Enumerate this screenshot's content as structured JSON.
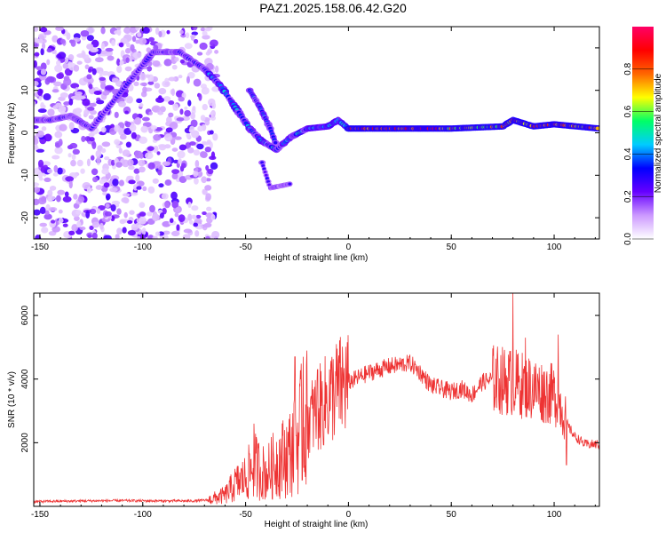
{
  "figure": {
    "title": "PAZ1.2025.158.06.42.G20"
  },
  "chart_data": [
    {
      "type": "heatmap",
      "title": "PAZ1.2025.158.06.42.G20",
      "xlabel": "Height of straight line (km)",
      "ylabel": "Frequency (Hz)",
      "xlim": [
        -153,
        122
      ],
      "ylim": [
        -25,
        25
      ],
      "xticks": [
        "-150",
        "-100",
        "-50",
        "0",
        "50",
        "100"
      ],
      "xtick_values": [
        -150,
        -100,
        -50,
        0,
        50,
        100
      ],
      "yticks": [
        "20",
        "10",
        "0",
        "-10",
        "-20"
      ],
      "ytick_values": [
        20,
        10,
        0,
        -10,
        -20
      ],
      "colorbar": {
        "label": "Normalized spectral amplitude",
        "range": [
          0.0,
          1.0
        ],
        "ticks": [
          "0.0",
          "0.2",
          "0.4",
          "0.6",
          "0.8"
        ],
        "tick_values": [
          0.0,
          0.2,
          0.4,
          0.6,
          0.8
        ],
        "colormap": [
          "#ffffff",
          "#cc99ff",
          "#6600ff",
          "#0000ff",
          "#00ccff",
          "#00ff66",
          "#ffff00",
          "#ff6600",
          "#ff0000",
          "#ff0066"
        ]
      },
      "features": {
        "noise_region_x": [
          -153,
          -68
        ],
        "main_signal": [
          {
            "x": -153,
            "f": 3
          },
          {
            "x": -145,
            "f": 3
          },
          {
            "x": -135,
            "f": 4
          },
          {
            "x": -125,
            "f": 1
          },
          {
            "x": -95,
            "f": 19
          },
          {
            "x": -82,
            "f": 19
          },
          {
            "x": -70,
            "f": 15
          },
          {
            "x": -62,
            "f": 11
          },
          {
            "x": -55,
            "f": 6
          },
          {
            "x": -48,
            "f": 1
          },
          {
            "x": -42,
            "f": -2
          },
          {
            "x": -35,
            "f": -4
          },
          {
            "x": -28,
            "f": -1
          },
          {
            "x": -20,
            "f": 1
          },
          {
            "x": -10,
            "f": 1.5
          },
          {
            "x": -5,
            "f": 3
          },
          {
            "x": 0,
            "f": 1
          },
          {
            "x": 20,
            "f": 1
          },
          {
            "x": 50,
            "f": 1
          },
          {
            "x": 75,
            "f": 1.5
          },
          {
            "x": 80,
            "f": 3
          },
          {
            "x": 90,
            "f": 1.5
          },
          {
            "x": 100,
            "f": 2
          },
          {
            "x": 122,
            "f": 1
          }
        ],
        "secondary_branch": [
          {
            "x": -48,
            "f": 10
          },
          {
            "x": -43,
            "f": 6
          },
          {
            "x": -38,
            "f": 1
          },
          {
            "x": -35,
            "f": -3
          }
        ],
        "tertiary_branch": [
          {
            "x": -42,
            "f": -7
          },
          {
            "x": -38,
            "f": -13
          },
          {
            "x": -28,
            "f": -12
          }
        ]
      }
    },
    {
      "type": "line",
      "xlabel": "Height of straight line (km)",
      "ylabel": "SNR (10 * v/v)",
      "xlim": [
        -153,
        122
      ],
      "ylim": [
        0,
        6700
      ],
      "xticks": [
        "-150",
        "-100",
        "-50",
        "0",
        "50",
        "100"
      ],
      "xtick_values": [
        -150,
        -100,
        -50,
        0,
        50,
        100
      ],
      "yticks": [
        "6000",
        "4000",
        "2000"
      ],
      "ytick_values": [
        6000,
        4000,
        2000
      ],
      "series": [
        {
          "color": "#ee3333",
          "envelope": [
            {
              "x": -153,
              "y": 150
            },
            {
              "x": -130,
              "y": 170
            },
            {
              "x": -110,
              "y": 180
            },
            {
              "x": -90,
              "y": 170
            },
            {
              "x": -75,
              "y": 170
            },
            {
              "x": -68,
              "y": 200
            },
            {
              "x": -60,
              "y": 350
            },
            {
              "x": -55,
              "y": 700
            },
            {
              "x": -50,
              "y": 900
            },
            {
              "x": -46,
              "y": 1300
            },
            {
              "x": -40,
              "y": 1000
            },
            {
              "x": -35,
              "y": 1400
            },
            {
              "x": -30,
              "y": 1600
            },
            {
              "x": -26,
              "y": 1900
            },
            {
              "x": -22,
              "y": 2600
            },
            {
              "x": -15,
              "y": 3000
            },
            {
              "x": -10,
              "y": 3400
            },
            {
              "x": -5,
              "y": 3700
            },
            {
              "x": 0,
              "y": 3900
            },
            {
              "x": 10,
              "y": 4200
            },
            {
              "x": 20,
              "y": 4400
            },
            {
              "x": 30,
              "y": 4500
            },
            {
              "x": 35,
              "y": 4200
            },
            {
              "x": 40,
              "y": 3800
            },
            {
              "x": 50,
              "y": 3600
            },
            {
              "x": 55,
              "y": 3700
            },
            {
              "x": 60,
              "y": 3500
            },
            {
              "x": 65,
              "y": 3900
            },
            {
              "x": 70,
              "y": 4000
            },
            {
              "x": 80,
              "y": 3900
            },
            {
              "x": 90,
              "y": 3700
            },
            {
              "x": 95,
              "y": 3600
            },
            {
              "x": 100,
              "y": 3500
            },
            {
              "x": 103,
              "y": 3200
            },
            {
              "x": 107,
              "y": 2500
            },
            {
              "x": 110,
              "y": 2200
            },
            {
              "x": 115,
              "y": 1950
            },
            {
              "x": 122,
              "y": 1950
            }
          ],
          "spikes": [
            {
              "x": -46,
              "y": 2600
            },
            {
              "x": -26,
              "y": 4700
            },
            {
              "x": -22,
              "y": 4700
            },
            {
              "x": -15,
              "y": 4300
            },
            {
              "x": 80,
              "y": 6700
            },
            {
              "x": 86,
              "y": 5300
            },
            {
              "x": 102,
              "y": 5400
            },
            {
              "x": 106,
              "y": 1300
            }
          ]
        }
      ]
    }
  ]
}
